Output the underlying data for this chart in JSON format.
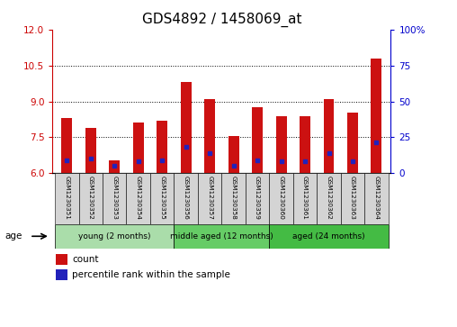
{
  "title": "GDS4892 / 1458069_at",
  "samples": [
    "GSM1230351",
    "GSM1230352",
    "GSM1230353",
    "GSM1230354",
    "GSM1230355",
    "GSM1230356",
    "GSM1230357",
    "GSM1230358",
    "GSM1230359",
    "GSM1230360",
    "GSM1230361",
    "GSM1230362",
    "GSM1230363",
    "GSM1230364"
  ],
  "count_values": [
    8.3,
    7.9,
    6.55,
    8.1,
    8.2,
    9.8,
    9.1,
    7.55,
    8.75,
    8.4,
    8.4,
    9.1,
    8.55,
    10.8
  ],
  "percentile_values": [
    6.55,
    6.6,
    6.3,
    6.5,
    6.55,
    7.1,
    6.85,
    6.3,
    6.55,
    6.5,
    6.5,
    6.85,
    6.5,
    7.3
  ],
  "ylim_left": [
    6,
    12
  ],
  "ylim_right": [
    0,
    100
  ],
  "yticks_left": [
    6,
    7.5,
    9,
    10.5,
    12
  ],
  "yticks_right": [
    0,
    25,
    50,
    75,
    100
  ],
  "bar_color": "#cc1111",
  "dot_color": "#2222bb",
  "groups": [
    {
      "label": "young (2 months)",
      "start": 0,
      "end": 5,
      "color": "#aaddaa"
    },
    {
      "label": "middle aged (12 months)",
      "start": 5,
      "end": 9,
      "color": "#66cc66"
    },
    {
      "label": "aged (24 months)",
      "start": 9,
      "end": 14,
      "color": "#44bb44"
    }
  ],
  "age_label": "age",
  "legend_count": "count",
  "legend_pct": "percentile rank within the sample",
  "title_fontsize": 11,
  "axis_color_left": "#cc0000",
  "axis_color_right": "#0000cc",
  "bg_color": "#f0f0f0"
}
